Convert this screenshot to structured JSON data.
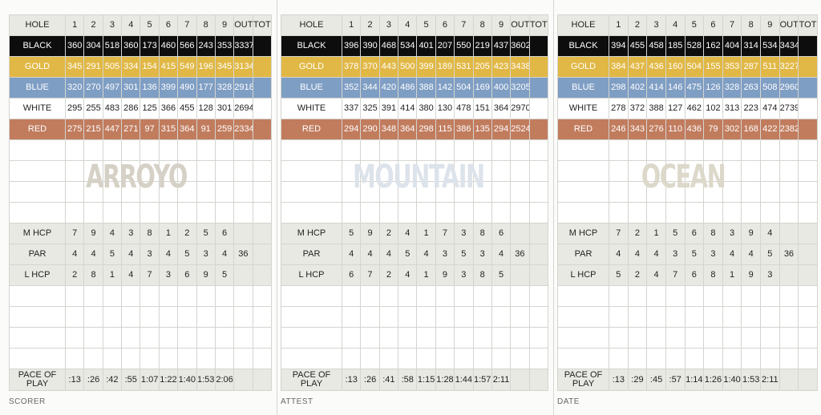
{
  "header": {
    "hole_label": "HOLE",
    "holes": [
      "1",
      "2",
      "3",
      "4",
      "5",
      "6",
      "7",
      "8",
      "9"
    ],
    "out_label": "OUT",
    "tot_label": "TOT"
  },
  "colors": {
    "black": "#0d0d0d",
    "gold": "#e1b845",
    "blue": "#7f9ec4",
    "white": "#ffffff",
    "red": "#c17c5e"
  },
  "cards": [
    {
      "course": "ARROYO",
      "course_color": "#d6d1c6",
      "tees": [
        {
          "name": "BLACK",
          "key": "black",
          "yards": [
            "360",
            "304",
            "518",
            "360",
            "173",
            "460",
            "566",
            "243",
            "353"
          ],
          "out": "3337"
        },
        {
          "name": "GOLD",
          "key": "gold",
          "yards": [
            "345",
            "291",
            "505",
            "334",
            "154",
            "415",
            "549",
            "196",
            "345"
          ],
          "out": "3134"
        },
        {
          "name": "BLUE",
          "key": "blue",
          "yards": [
            "320",
            "270",
            "497",
            "301",
            "136",
            "399",
            "490",
            "177",
            "328"
          ],
          "out": "2918"
        },
        {
          "name": "WHITE",
          "key": "white",
          "yards": [
            "295",
            "255",
            "483",
            "286",
            "125",
            "366",
            "455",
            "128",
            "301"
          ],
          "out": "2694"
        },
        {
          "name": "RED",
          "key": "red",
          "yards": [
            "275",
            "215",
            "447",
            "271",
            "97",
            "315",
            "364",
            "91",
            "259"
          ],
          "out": "2334"
        }
      ],
      "m_hcp": {
        "label": "M HCP",
        "values": [
          "7",
          "9",
          "4",
          "3",
          "8",
          "1",
          "2",
          "5",
          "6"
        ]
      },
      "par": {
        "label": "PAR",
        "values": [
          "4",
          "4",
          "5",
          "4",
          "3",
          "4",
          "5",
          "3",
          "4"
        ],
        "out": "36"
      },
      "l_hcp": {
        "label": "L HCP",
        "values": [
          "2",
          "8",
          "1",
          "4",
          "7",
          "3",
          "6",
          "9",
          "5"
        ]
      },
      "pace": {
        "label": "PACE OF PLAY",
        "values": [
          ":13",
          ":26",
          ":42",
          ":55",
          "1:07",
          "1:22",
          "1:40",
          "1:53",
          "2:06"
        ]
      },
      "footer": "SCORER"
    },
    {
      "course": "MOUNTAIN",
      "course_color": "#dde3ea",
      "tees": [
        {
          "name": "BLACK",
          "key": "black",
          "yards": [
            "396",
            "390",
            "468",
            "534",
            "401",
            "207",
            "550",
            "219",
            "437"
          ],
          "out": "3602"
        },
        {
          "name": "GOLD",
          "key": "gold",
          "yards": [
            "378",
            "370",
            "443",
            "500",
            "399",
            "189",
            "531",
            "205",
            "423"
          ],
          "out": "3438"
        },
        {
          "name": "BLUE",
          "key": "blue",
          "yards": [
            "352",
            "344",
            "420",
            "486",
            "388",
            "142",
            "504",
            "169",
            "400"
          ],
          "out": "3205"
        },
        {
          "name": "WHITE",
          "key": "white",
          "yards": [
            "337",
            "325",
            "391",
            "414",
            "380",
            "130",
            "478",
            "151",
            "364"
          ],
          "out": "2970"
        },
        {
          "name": "RED",
          "key": "red",
          "yards": [
            "294",
            "290",
            "348",
            "364",
            "298",
            "115",
            "386",
            "135",
            "294"
          ],
          "out": "2524"
        }
      ],
      "m_hcp": {
        "label": "M HCP",
        "values": [
          "5",
          "9",
          "2",
          "4",
          "1",
          "7",
          "3",
          "8",
          "6"
        ]
      },
      "par": {
        "label": "PAR",
        "values": [
          "4",
          "4",
          "4",
          "5",
          "4",
          "3",
          "5",
          "3",
          "4"
        ],
        "out": "36"
      },
      "l_hcp": {
        "label": "L HCP",
        "values": [
          "6",
          "7",
          "2",
          "4",
          "1",
          "9",
          "3",
          "8",
          "5"
        ]
      },
      "pace": {
        "label": "PACE OF PLAY",
        "values": [
          ":13",
          ":26",
          ":41",
          ":58",
          "1:15",
          "1:28",
          "1:44",
          "1:57",
          "2:11"
        ]
      },
      "footer": "ATTEST"
    },
    {
      "course": "OCEAN",
      "course_color": "#dcd8ca",
      "tees": [
        {
          "name": "BLACK",
          "key": "black",
          "yards": [
            "394",
            "455",
            "458",
            "185",
            "528",
            "162",
            "404",
            "314",
            "534"
          ],
          "out": "3434"
        },
        {
          "name": "GOLD",
          "key": "gold",
          "yards": [
            "384",
            "437",
            "436",
            "160",
            "504",
            "155",
            "353",
            "287",
            "511"
          ],
          "out": "3227"
        },
        {
          "name": "BLUE",
          "key": "blue",
          "yards": [
            "298",
            "402",
            "414",
            "146",
            "475",
            "126",
            "328",
            "263",
            "508"
          ],
          "out": "2960"
        },
        {
          "name": "WHITE",
          "key": "white",
          "yards": [
            "278",
            "372",
            "388",
            "127",
            "462",
            "102",
            "313",
            "223",
            "474"
          ],
          "out": "2739"
        },
        {
          "name": "RED",
          "key": "red",
          "yards": [
            "246",
            "343",
            "276",
            "110",
            "436",
            "79",
            "302",
            "168",
            "422"
          ],
          "out": "2382"
        }
      ],
      "m_hcp": {
        "label": "M HCP",
        "values": [
          "7",
          "2",
          "1",
          "5",
          "6",
          "8",
          "3",
          "9",
          "4"
        ]
      },
      "par": {
        "label": "PAR",
        "values": [
          "4",
          "4",
          "4",
          "3",
          "5",
          "3",
          "4",
          "4",
          "5"
        ],
        "out": "36"
      },
      "l_hcp": {
        "label": "L HCP",
        "values": [
          "5",
          "2",
          "4",
          "7",
          "6",
          "8",
          "1",
          "9",
          "3"
        ]
      },
      "pace": {
        "label": "PACE OF PLAY",
        "values": [
          ":13",
          ":29",
          ":45",
          ":57",
          "1:14",
          "1:26",
          "1:40",
          "1:53",
          "2:11"
        ]
      },
      "footer": "DATE"
    }
  ]
}
